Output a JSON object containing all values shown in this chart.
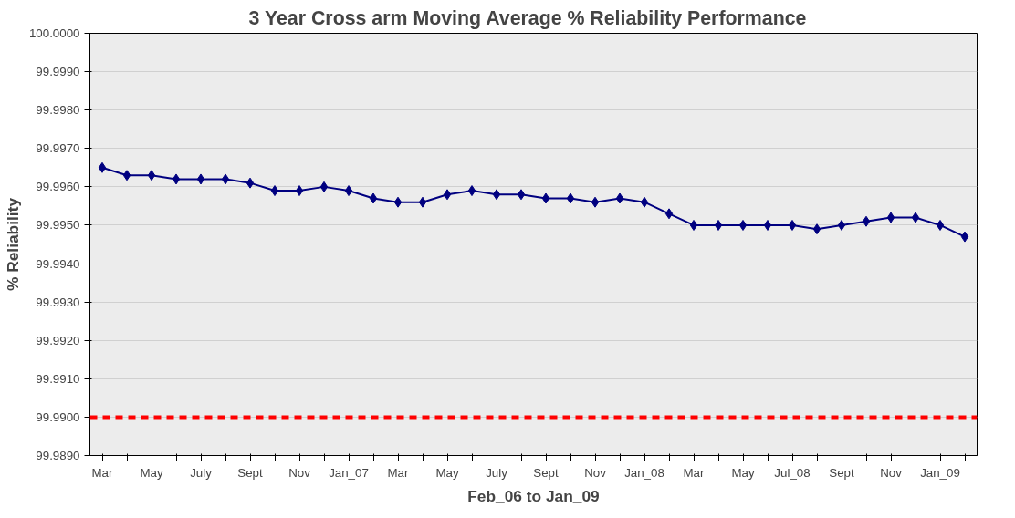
{
  "chart_data": {
    "type": "line",
    "title": "3 Year Cross arm Moving Average %   Reliability Performance",
    "xlabel": "Feb_06 to Jan_09",
    "ylabel": "% Reliability",
    "categories": [
      "Mar",
      null,
      "May",
      null,
      "July",
      null,
      "Sept",
      null,
      "Nov",
      null,
      "Jan_07",
      null,
      "Mar",
      null,
      "May",
      null,
      "July",
      null,
      "Sept",
      null,
      "Nov",
      null,
      "Jan_08",
      null,
      "Mar",
      null,
      "May",
      null,
      "Jul_08",
      null,
      "Sept",
      null,
      "Nov",
      null,
      "Jan_09",
      null
    ],
    "series": [
      {
        "color": "#000080",
        "values": [
          99.9965,
          99.9963,
          99.9963,
          99.9962,
          99.9962,
          99.9962,
          99.9961,
          99.9959,
          99.9959,
          99.996,
          99.9959,
          99.9957,
          99.9956,
          99.9956,
          99.9958,
          99.9959,
          99.9958,
          99.9958,
          99.9957,
          99.9957,
          99.9956,
          99.9957,
          99.9956,
          99.9953,
          99.995,
          99.995,
          99.995,
          99.995,
          99.995,
          99.9949,
          99.995,
          99.9951,
          99.9952,
          99.9952,
          99.995,
          99.9947
        ]
      }
    ],
    "ylim": [
      99.989,
      100.0
    ],
    "yticks": [
      {
        "value": 99.989,
        "label": "99.9890"
      },
      {
        "value": 99.99,
        "label": "99.9900"
      },
      {
        "value": 99.991,
        "label": "99.9910"
      },
      {
        "value": 99.992,
        "label": "99.9920"
      },
      {
        "value": 99.993,
        "label": "99.9930"
      },
      {
        "value": 99.994,
        "label": "99.9940"
      },
      {
        "value": 99.995,
        "label": "99.9950"
      },
      {
        "value": 99.996,
        "label": "99.9960"
      },
      {
        "value": 99.997,
        "label": "99.9970"
      },
      {
        "value": 99.998,
        "label": "99.9980"
      },
      {
        "value": 99.999,
        "label": "99.9990"
      },
      {
        "value": 100.0,
        "label": "100.0000"
      }
    ],
    "ref_lines": [
      {
        "axis": "y",
        "value": 99.99,
        "color": "#ff0000",
        "line_style": "dashed"
      }
    ],
    "grid": "y",
    "marker": "diamond",
    "line_style": "solid"
  }
}
